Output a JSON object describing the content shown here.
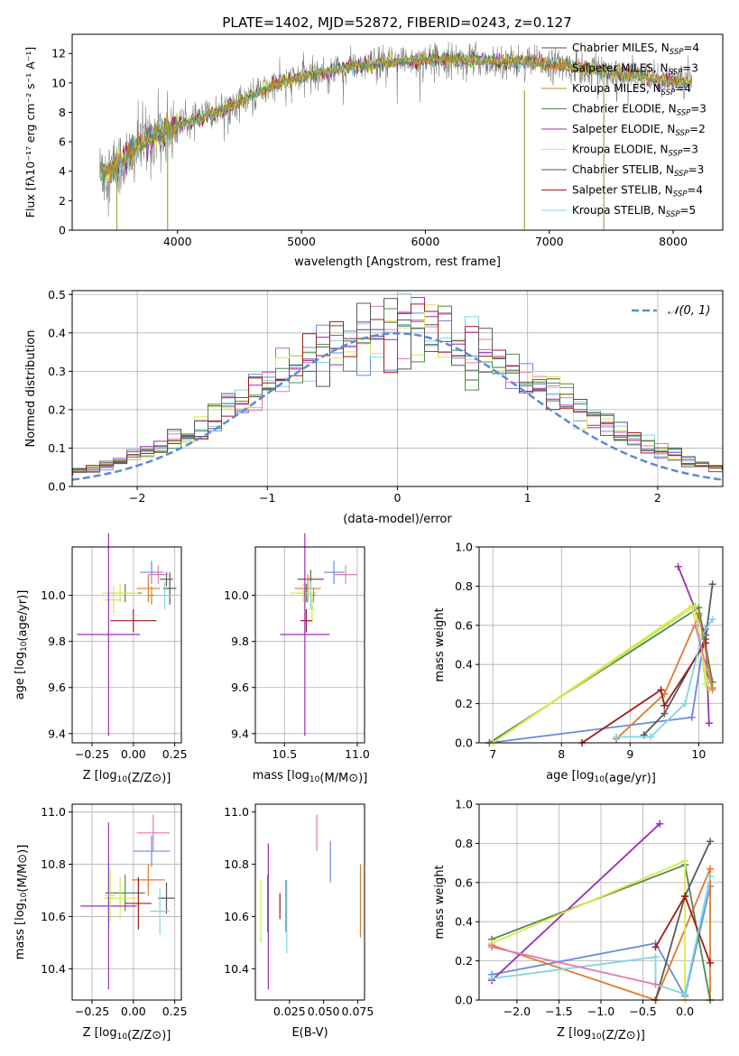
{
  "title": "PLATE=1402, MJD=52872, FIBERID=0243, z=0.127",
  "colors": {
    "axis": "#000000",
    "grid": "#b0b0b0",
    "normal_curve": "#5b8bd6",
    "series": [
      "#6a8be0",
      "#e07b2e",
      "#c08a2a",
      "#4f8a4f",
      "#9a2fb5",
      "#dbe84f",
      "#555555",
      "#a31a1a",
      "#7fd6e0",
      "#c0ee55",
      "#e27bb0",
      "#5a5a5a"
    ]
  },
  "chart_data": [
    {
      "id": "spectrum",
      "type": "line",
      "title": "PLATE=1402, MJD=52872, FIBERID=0243, z=0.127",
      "xlabel": "wavelength [Angstrom, rest frame]",
      "ylabel": "Flux [fλ10⁻¹⁷ erg cm⁻² s⁻¹ A⁻¹]",
      "xlim": [
        3150,
        8400
      ],
      "ylim": [
        0,
        13.3
      ],
      "xticks": [
        4000,
        5000,
        6000,
        7000,
        8000
      ],
      "yticks": [
        0,
        2,
        4,
        6,
        8,
        10,
        12
      ],
      "grid": false,
      "legend_position": "right",
      "continuum": {
        "x": [
          3400,
          3500,
          3600,
          3700,
          3800,
          3900,
          4000,
          4200,
          4500,
          4800,
          5000,
          5200,
          5500,
          5800,
          6000,
          6200,
          6500,
          6800,
          7000,
          7300,
          7600,
          7900,
          8150
        ],
        "y": [
          3.9,
          4.3,
          4.9,
          5.8,
          6.4,
          6.8,
          7.1,
          7.6,
          8.7,
          9.9,
          10.4,
          10.8,
          11.2,
          11.5,
          11.6,
          11.6,
          11.5,
          11.4,
          11.3,
          11.0,
          10.6,
          10.2,
          10.0
        ]
      },
      "series": [
        {
          "name": "Chabrier MILES, N_SSP=4",
          "sub": "SSP",
          "label_pre": "Chabrier MILES, N",
          "label_post": "=4"
        },
        {
          "name": "Salpeter MILES, N_SSP=3",
          "sub": "SSP",
          "label_pre": "Salpeter MILES, N",
          "label_post": "=3"
        },
        {
          "name": "Kroupa MILES, N_SSP=4",
          "sub": "SSP",
          "label_pre": "Kroupa MILES, N",
          "label_post": "=4"
        },
        {
          "name": "Chabrier ELODIE, N_SSP=3",
          "sub": "SSP",
          "label_pre": "Chabrier ELODIE, N",
          "label_post": "=3"
        },
        {
          "name": "Salpeter ELODIE, N_SSP=2",
          "sub": "SSP",
          "label_pre": "Salpeter ELODIE, N",
          "label_post": "=2"
        },
        {
          "name": "Kroupa ELODIE, N_SSP=3",
          "sub": "SSP",
          "label_pre": "Kroupa ELODIE, N",
          "label_post": "=3"
        },
        {
          "name": "Chabrier STELIB, N_SSP=3",
          "sub": "SSP",
          "label_pre": "Chabrier STELIB, N",
          "label_post": "=3"
        },
        {
          "name": "Salpeter STELIB, N_SSP=4",
          "sub": "SSP",
          "label_pre": "Salpeter STELIB, N",
          "label_post": "=4"
        },
        {
          "name": "Kroupa STELIB, N_SSP=5",
          "sub": "SSP",
          "label_pre": "Kroupa STELIB, N",
          "label_post": "=5"
        }
      ]
    },
    {
      "id": "residuals",
      "type": "line",
      "xlabel": "(data-model)/error",
      "ylabel": "Normed distribution",
      "xlim": [
        -2.5,
        2.5
      ],
      "ylim": [
        0,
        0.51
      ],
      "xticks": [
        -2,
        -1,
        0,
        1,
        2
      ],
      "yticks": [
        0.0,
        0.1,
        0.2,
        0.3,
        0.4,
        0.5
      ],
      "grid": true,
      "legend": "𝒩(0, 1)",
      "legend_position": "top-right",
      "bins": 50
    },
    {
      "id": "z_age",
      "type": "scatter",
      "xlabel": "Z [log10(Z/Z⊙)]",
      "ylabel": "age  [log10(age/yr)]",
      "xlim": [
        -0.37,
        0.29
      ],
      "ylim": [
        9.36,
        10.21
      ],
      "xticks": [
        -0.25,
        0.0,
        0.25
      ],
      "yticks": [
        9.4,
        9.6,
        9.8,
        10.0
      ],
      "grid": true,
      "points": [
        {
          "x": 0.11,
          "y": 10.1,
          "xe": 0.07,
          "ye": 0.05,
          "c": 0
        },
        {
          "x": 0.09,
          "y": 10.03,
          "xe": 0.07,
          "ye": 0.06,
          "c": 1
        },
        {
          "x": 0.2,
          "y": 10.07,
          "xe": 0.04,
          "ye": 0.03,
          "c": 11
        },
        {
          "x": 0.22,
          "y": 10.03,
          "xe": 0.04,
          "ye": 0.07,
          "c": 6
        },
        {
          "x": 0.15,
          "y": 10.09,
          "xe": 0.06,
          "ye": 0.04,
          "c": 10
        },
        {
          "x": -0.05,
          "y": 10.01,
          "xe": 0.1,
          "ye": 0.04,
          "c": 3
        },
        {
          "x": -0.08,
          "y": 10.01,
          "xe": 0.11,
          "ye": 0.04,
          "c": 5
        },
        {
          "x": 0.19,
          "y": 10.0,
          "xe": 0.05,
          "ye": 0.06,
          "c": 8
        },
        {
          "x": -0.12,
          "y": 9.98,
          "xe": 0.05,
          "ye": 0.06,
          "c": 9
        },
        {
          "x": 0.0,
          "y": 9.89,
          "xe": 0.14,
          "ye": 0.05,
          "c": 7
        },
        {
          "x": -0.15,
          "y": 9.83,
          "xe": 0.19,
          "ye": 0.44,
          "c": 4
        },
        {
          "x": 0.11,
          "y": 10.0,
          "xe": 0.02,
          "ye": 0.04,
          "c": 2
        }
      ]
    },
    {
      "id": "mass_age",
      "type": "scatter",
      "xlabel": "mass [log10(M/M⊙)]",
      "ylabel": "",
      "xlim": [
        10.3,
        11.05
      ],
      "ylim": [
        9.36,
        10.21
      ],
      "xticks": [
        10.5,
        11.0
      ],
      "yticks": [
        9.4,
        9.6,
        9.8,
        10.0
      ],
      "grid": true,
      "points": [
        {
          "x": 10.84,
          "y": 10.1,
          "xe": 0.07,
          "ye": 0.05,
          "c": 0
        },
        {
          "x": 10.92,
          "y": 10.09,
          "xe": 0.08,
          "ye": 0.04,
          "c": 10
        },
        {
          "x": 10.68,
          "y": 10.07,
          "xe": 0.09,
          "ye": 0.04,
          "c": 11
        },
        {
          "x": 10.66,
          "y": 10.03,
          "xe": 0.09,
          "ye": 0.06,
          "c": 1
        },
        {
          "x": 10.65,
          "y": 10.01,
          "xe": 0.07,
          "ye": 0.04,
          "c": 3
        },
        {
          "x": 10.63,
          "y": 10.01,
          "xe": 0.09,
          "ye": 0.04,
          "c": 5
        },
        {
          "x": 10.68,
          "y": 10.0,
          "xe": 0.04,
          "ye": 0.06,
          "c": 8
        },
        {
          "x": 10.69,
          "y": 9.94,
          "xe": 0.02,
          "ye": 0.06,
          "c": 9
        },
        {
          "x": 10.65,
          "y": 9.89,
          "xe": 0.04,
          "ye": 0.05,
          "c": 7
        },
        {
          "x": 10.64,
          "y": 9.83,
          "xe": 0.17,
          "ye": 0.44,
          "c": 4
        },
        {
          "x": 10.7,
          "y": 10.0,
          "xe": 0.01,
          "ye": 0.03,
          "c": 2
        }
      ]
    },
    {
      "id": "age_weight",
      "type": "line",
      "xlabel": "age  [log10(age/yr)]",
      "ylabel": "mass weight",
      "xlim": [
        6.8,
        10.35
      ],
      "ylim": [
        0,
        1.0
      ],
      "xticks": [
        7,
        8,
        9,
        10
      ],
      "yticks": [
        0.0,
        0.2,
        0.4,
        0.6,
        0.8,
        1.0
      ],
      "grid": true,
      "series": [
        {
          "c": 0,
          "x": [
            6.95,
            9.9,
            10.1
          ],
          "y": [
            0.0,
            0.13,
            0.58
          ]
        },
        {
          "c": 1,
          "x": [
            8.8,
            9.5,
            10.0
          ],
          "y": [
            0.02,
            0.25,
            0.65
          ]
        },
        {
          "c": 3,
          "x": [
            6.95,
            10.0,
            10.2
          ],
          "y": [
            0.0,
            0.69,
            0.31
          ]
        },
        {
          "c": 4,
          "x": [
            9.7,
            10.1,
            10.15
          ],
          "y": [
            0.9,
            0.55,
            0.1
          ]
        },
        {
          "c": 9,
          "x": [
            7.0,
            9.95,
            10.1
          ],
          "y": [
            0.0,
            0.7,
            0.3
          ]
        },
        {
          "c": 5,
          "x": [
            7.0,
            9.9,
            10.15
          ],
          "y": [
            0.0,
            0.7,
            0.27
          ]
        },
        {
          "c": 11,
          "x": [
            9.2,
            9.5,
            10.1,
            10.2
          ],
          "y": [
            0.04,
            0.15,
            0.53,
            0.81
          ]
        },
        {
          "c": 7,
          "x": [
            8.3,
            9.45,
            9.5,
            10.1
          ],
          "y": [
            0.0,
            0.27,
            0.19,
            0.51
          ]
        },
        {
          "c": 8,
          "x": [
            8.8,
            9.3,
            9.8,
            10.05,
            10.2
          ],
          "y": [
            0.03,
            0.03,
            0.2,
            0.55,
            0.63
          ]
        },
        {
          "c": 10,
          "x": [
            9.95,
            10.2
          ],
          "y": [
            0.6,
            0.27
          ]
        },
        {
          "c": 2,
          "x": [
            10.0,
            10.2
          ],
          "y": [
            0.66,
            0.28
          ]
        }
      ]
    },
    {
      "id": "z_mass",
      "type": "scatter",
      "xlabel": "Z [log10(Z/Z⊙)]",
      "ylabel": "mass [log10(M/M⊙)]",
      "xlim": [
        -0.37,
        0.29
      ],
      "ylim": [
        10.28,
        11.03
      ],
      "xticks": [
        -0.25,
        0.0,
        0.25
      ],
      "yticks": [
        10.4,
        10.6,
        10.8,
        11.0
      ],
      "grid": true,
      "points": [
        {
          "x": 0.12,
          "y": 10.92,
          "xe": 0.1,
          "ye": 0.07,
          "c": 10
        },
        {
          "x": 0.11,
          "y": 10.85,
          "xe": 0.11,
          "ye": 0.06,
          "c": 0
        },
        {
          "x": 0.09,
          "y": 10.74,
          "xe": 0.1,
          "ye": 0.06,
          "c": 1
        },
        {
          "x": -0.05,
          "y": 10.69,
          "xe": 0.12,
          "ye": 0.07,
          "c": 3
        },
        {
          "x": 0.2,
          "y": 10.67,
          "xe": 0.05,
          "ye": 0.06,
          "c": 11
        },
        {
          "x": -0.08,
          "y": 10.67,
          "xe": 0.1,
          "ye": 0.08,
          "c": 5
        },
        {
          "x": -0.15,
          "y": 10.64,
          "xe": 0.17,
          "ye": 0.32,
          "c": 4
        },
        {
          "x": 0.03,
          "y": 10.65,
          "xe": 0.08,
          "ye": 0.1,
          "c": 7
        },
        {
          "x": 0.16,
          "y": 10.62,
          "xe": 0.06,
          "ye": 0.09,
          "c": 8
        },
        {
          "x": -0.14,
          "y": 10.68,
          "xe": 0.03,
          "ye": 0.1,
          "c": 9
        }
      ]
    },
    {
      "id": "ebv_mass",
      "type": "scatter",
      "xlabel": "E(B-V)",
      "ylabel": "",
      "xlim": [
        0.0,
        0.08
      ],
      "ylim": [
        10.28,
        11.03
      ],
      "xticks": [
        0.025,
        0.05,
        0.075
      ],
      "yticks": [
        10.4,
        10.6,
        10.8,
        11.0
      ],
      "grid": false,
      "points": [
        {
          "x": 0.045,
          "y": 10.92,
          "ye": 0.07,
          "c": 10
        },
        {
          "x": 0.055,
          "y": 10.81,
          "ye": 0.08,
          "c": 0
        },
        {
          "x": 0.077,
          "y": 10.66,
          "ye": 0.14,
          "c": 1
        },
        {
          "x": 0.0095,
          "y": 10.6,
          "ye": 0.28,
          "c": 4
        },
        {
          "x": 0.009,
          "y": 10.65,
          "ye": 0.11,
          "c": 3
        },
        {
          "x": 0.004,
          "y": 10.62,
          "ye": 0.12,
          "c": 9
        },
        {
          "x": 0.0225,
          "y": 10.64,
          "ye": 0.1,
          "c": 11
        },
        {
          "x": 0.023,
          "y": 10.6,
          "ye": 0.14,
          "c": 8
        },
        {
          "x": 0.018,
          "y": 10.64,
          "ye": 0.05,
          "c": 7
        }
      ]
    },
    {
      "id": "z_weight",
      "type": "line",
      "xlabel": "Z [log10(Z/Z⊙)]",
      "ylabel": "mass weight",
      "xlim": [
        -2.45,
        0.45
      ],
      "ylim": [
        0,
        1.0
      ],
      "xticks": [
        -2.0,
        -1.5,
        -1.0,
        -0.5,
        0.0
      ],
      "yticks": [
        0.0,
        0.2,
        0.4,
        0.6,
        0.8,
        1.0
      ],
      "grid": true,
      "series": [
        {
          "c": 0,
          "x": [
            -2.3,
            -0.35,
            0.0,
            0.3
          ],
          "y": [
            0.13,
            0.29,
            0.02,
            0.58
          ]
        },
        {
          "c": 1,
          "x": [
            -2.3,
            -0.35,
            0.3,
            0.3
          ],
          "y": [
            0.28,
            0.0,
            0.67,
            0.0
          ]
        },
        {
          "c": 3,
          "x": [
            -2.3,
            0.0,
            0.3
          ],
          "y": [
            0.31,
            0.69,
            0.0
          ]
        },
        {
          "c": 4,
          "x": [
            -2.3,
            -0.3
          ],
          "y": [
            0.1,
            0.9
          ]
        },
        {
          "c": 5,
          "x": [
            -2.3,
            0.0,
            0.0
          ],
          "y": [
            0.29,
            0.71,
            0.0
          ]
        },
        {
          "c": 11,
          "x": [
            -0.35,
            0.0,
            0.3
          ],
          "y": [
            0.0,
            0.53,
            0.81
          ]
        },
        {
          "c": 7,
          "x": [
            -0.35,
            0.0,
            0.3
          ],
          "y": [
            0.27,
            0.53,
            0.19
          ]
        },
        {
          "c": 8,
          "x": [
            -2.3,
            -0.35,
            -0.35,
            0.0,
            0.3
          ],
          "y": [
            0.11,
            0.22,
            0.08,
            0.03,
            0.63
          ]
        },
        {
          "c": 10,
          "x": [
            -2.3,
            -0.35
          ],
          "y": [
            0.27,
            0.08
          ]
        }
      ]
    }
  ]
}
